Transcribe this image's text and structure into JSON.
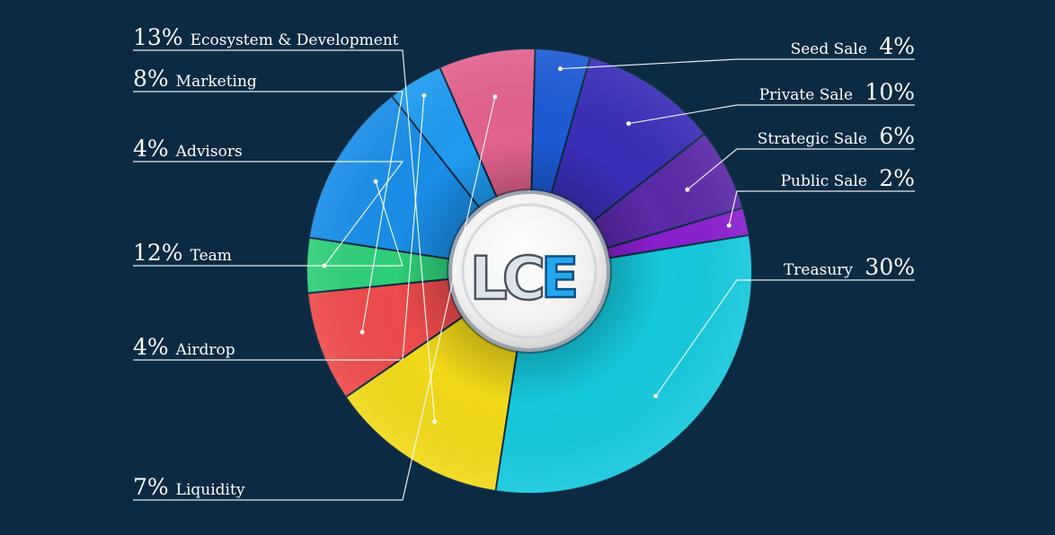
{
  "chart_data": {
    "type": "pie",
    "center_logo": "LCE",
    "slices": [
      {
        "name": "Seed Sale",
        "pct_label": "4%",
        "value": 4,
        "color": "#1d5bd6",
        "side": "right"
      },
      {
        "name": "Private Sale",
        "pct_label": "10%",
        "value": 10,
        "color": "#3a2fb8",
        "side": "right"
      },
      {
        "name": "Strategic Sale",
        "pct_label": "6%",
        "value": 6,
        "color": "#5b2aa8",
        "side": "right"
      },
      {
        "name": "Public Sale",
        "pct_label": "2%",
        "value": 2,
        "color": "#8a1fcf",
        "side": "right"
      },
      {
        "name": "Treasury",
        "pct_label": "30%",
        "value": 30,
        "color": "#15c9dd",
        "side": "right"
      },
      {
        "name": "Ecosystem & Development",
        "pct_label": "13%",
        "value": 13,
        "color": "#f2d91a",
        "side": "left"
      },
      {
        "name": "Marketing",
        "pct_label": "8%",
        "value": 8,
        "color": "#ee4b4b",
        "side": "left"
      },
      {
        "name": "Advisors",
        "pct_label": "4%",
        "value": 4,
        "color": "#2fcf7a",
        "side": "left"
      },
      {
        "name": "Team",
        "pct_label": "12%",
        "value": 12,
        "color": "#1a8ee8",
        "side": "left"
      },
      {
        "name": "Airdrop",
        "pct_label": "4%",
        "value": 4,
        "color": "#1e9bf0",
        "side": "left"
      },
      {
        "name": "Liquidity",
        "pct_label": "7%",
        "value": 7,
        "color": "#e2628e",
        "side": "left"
      }
    ]
  }
}
